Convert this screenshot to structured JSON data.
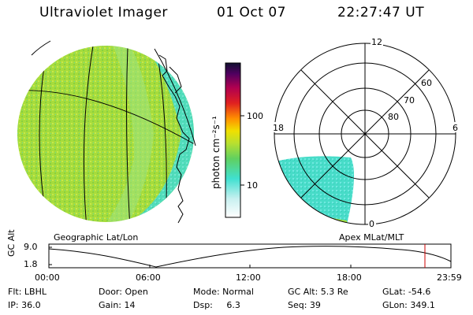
{
  "header": {
    "instrument": "Ultraviolet Imager",
    "date": "01 Oct 07",
    "time": "22:27:47 UT"
  },
  "colorbar": {
    "label": "photon cm⁻²s⁻¹",
    "ticks": [
      "100",
      "10"
    ]
  },
  "panels": {
    "left_caption": "Geographic Lat/Lon",
    "right_caption": "Apex MLat/MLT"
  },
  "polar": {
    "mlt_labels": {
      "top": "12",
      "left": "18",
      "right": "6",
      "bottom": "0"
    },
    "lat_labels": [
      "60",
      "70",
      "80"
    ]
  },
  "altitude_plot": {
    "ylabel": "GC Alt",
    "y_top": "9.0",
    "y_bottom": "1.8",
    "x_ticks": [
      "00:00",
      "06:00",
      "12:00",
      "18:00",
      "23:59"
    ]
  },
  "info": {
    "filter": "Flt: LBHL",
    "door": "Door: Open",
    "mode": "Mode:  Normal",
    "gc_alt": "GC Alt: 5.3 Re",
    "glat": "GLat: -54.6",
    "ip": "IP: 36.0",
    "gain": "Gain: 14",
    "dsp": "Dsp:     6.3",
    "seq": "Seq: 39",
    "glon": "GLon: 349.1"
  },
  "colors": {
    "cyan": "#40e0d0",
    "green": "#a8e040",
    "marker": "#cc0000"
  }
}
